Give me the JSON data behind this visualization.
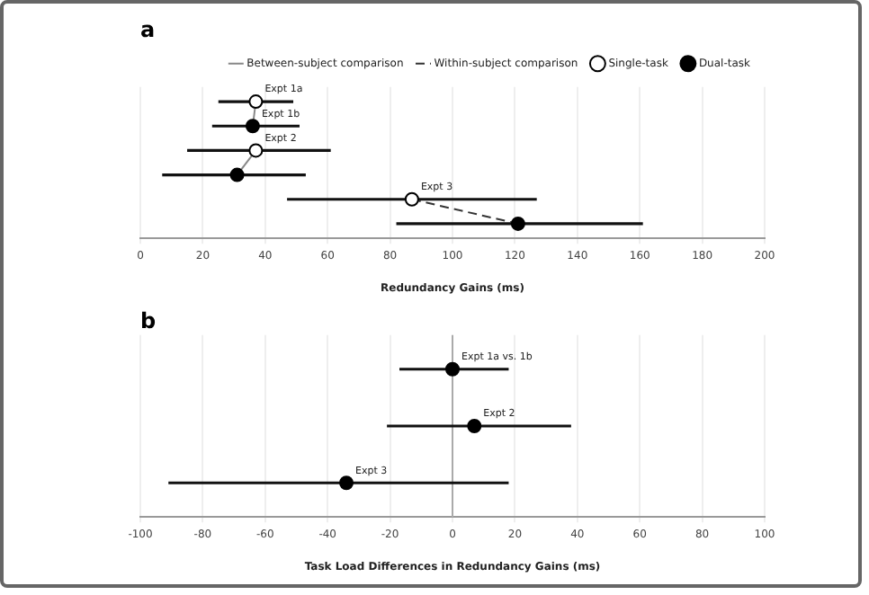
{
  "chart_data": [
    {
      "type": "scatter",
      "title": "a",
      "xlabel": "Redundancy Gains (ms)",
      "orientation": "horizontal",
      "categories": [
        null,
        null,
        null,
        null,
        null,
        null
      ],
      "xlim": [
        0,
        200
      ],
      "xticks": [
        0,
        20,
        40,
        60,
        80,
        100,
        120,
        140,
        160,
        180,
        200
      ],
      "grid": "x",
      "legend": "top right",
      "series": [
        {
          "type": "line",
          "name": "Between-subject comparison",
          "color": "#888888",
          "line_style": "solid",
          "values": [
            37,
            36,
            null,
            null,
            null,
            null
          ]
        },
        {
          "type": "line",
          "color": "#888888",
          "line_style": "solid",
          "values": [
            null,
            null,
            37,
            31,
            null,
            null
          ]
        },
        {
          "type": "line",
          "name": "Within-subject comparison",
          "color": "#333333",
          "line_style": "dashed",
          "values": [
            null,
            null,
            null,
            null,
            87,
            121
          ]
        },
        {
          "name": "Single-task",
          "color": "#ffffff",
          "marker": "circle",
          "values": [
            37,
            null,
            37,
            null,
            87,
            null
          ],
          "errors": [
            [
              25,
              49
            ],
            null,
            [
              15,
              61
            ],
            null,
            [
              47,
              127
            ],
            null
          ],
          "value_labels": [
            "Expt 1a",
            null,
            "Expt 2",
            null,
            "Expt 3",
            null
          ]
        },
        {
          "name": "Dual-task",
          "color": "#000000",
          "marker": "circle",
          "values": [
            null,
            36,
            null,
            31,
            null,
            121
          ],
          "errors": [
            null,
            [
              23,
              51
            ],
            null,
            [
              7,
              53
            ],
            null,
            [
              82,
              161
            ]
          ],
          "value_labels": [
            null,
            "Expt 1b",
            null,
            null,
            null,
            null
          ]
        }
      ]
    },
    {
      "type": "scatter",
      "title": "b",
      "xlabel": "Task Load Differences in Redundancy Gains (ms)",
      "orientation": "horizontal",
      "categories": [
        null,
        null,
        null
      ],
      "xlim": [
        -100,
        100
      ],
      "xticks": [
        -100,
        -80,
        -60,
        -40,
        -20,
        0,
        20,
        40,
        60,
        80,
        100
      ],
      "grid": "x",
      "ref_lines": [
        {
          "axis": "x",
          "value": 0,
          "color": "#aaaaaa"
        }
      ],
      "series": [
        {
          "color": "#000000",
          "marker": "circle",
          "values": [
            0,
            7,
            -34
          ],
          "errors": [
            [
              -17,
              18
            ],
            [
              -21,
              38
            ],
            [
              -91,
              18
            ]
          ],
          "value_labels": [
            "Expt 1a vs. 1b",
            "Expt 2",
            "Expt 3"
          ]
        }
      ]
    }
  ]
}
